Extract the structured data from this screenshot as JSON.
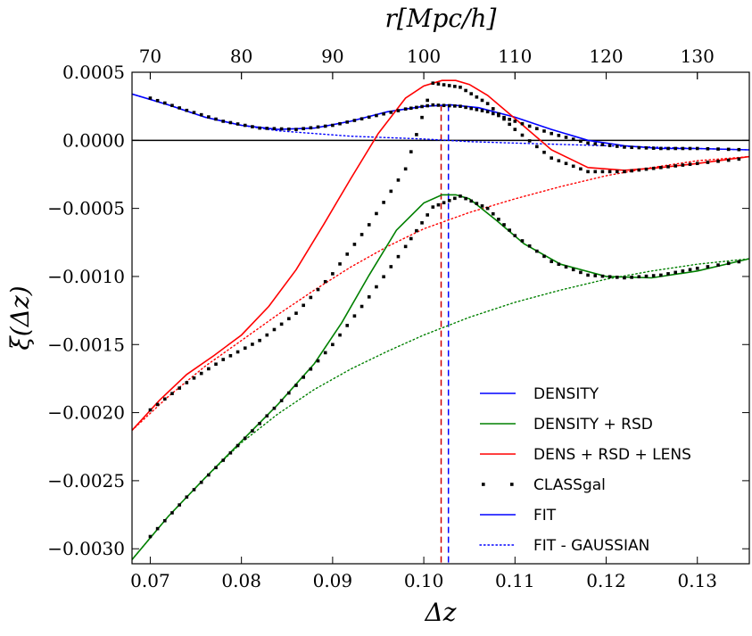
{
  "chart_data": {
    "type": "line",
    "xlabel": "Δz",
    "ylabel": "ξ(Δz)",
    "x2label": "r[Mpc/h]",
    "xlim": [
      0.068,
      0.1357
    ],
    "ylim": [
      -0.00311,
      0.0005
    ],
    "x_ticks": [
      0.07,
      0.08,
      0.09,
      0.1,
      0.11,
      0.12,
      0.13
    ],
    "x_tick_labels": [
      "0.07",
      "0.08",
      "0.09",
      "0.10",
      "0.11",
      "0.12",
      "0.13"
    ],
    "y_ticks": [
      0.0005,
      0.0,
      -0.0005,
      -0.001,
      -0.0015,
      -0.002,
      -0.0025,
      -0.003
    ],
    "y_tick_labels": [
      "0.0005",
      "0.0000",
      "−0.0005",
      "−0.0010",
      "−0.0015",
      "−0.0020",
      "−0.0025",
      "−0.0030"
    ],
    "x2_ticks_r": [
      70,
      80,
      90,
      100,
      110,
      120,
      130
    ],
    "x2_tick_labels": [
      "70",
      "80",
      "90",
      "100",
      "110",
      "120",
      "130"
    ],
    "r_per_dz": 1000,
    "vlines": [
      {
        "x": 0.1019,
        "color": "#cc0000",
        "style": "dashed"
      },
      {
        "x": 0.1027,
        "color": "#0000ff",
        "style": "dashed"
      }
    ],
    "hline": {
      "y": 0.0,
      "color": "#000000"
    },
    "colors": {
      "density": "#0000ff",
      "rsd": "#008000",
      "lens": "#ff0000",
      "classgal": "#000000"
    },
    "series": [
      {
        "name": "DENSITY",
        "key": "density",
        "style": "solid",
        "color": "#0000ff",
        "x": [
          0.068,
          0.072,
          0.076,
          0.08,
          0.084,
          0.088,
          0.092,
          0.096,
          0.1,
          0.103,
          0.106,
          0.11,
          0.114,
          0.118,
          0.122,
          0.126,
          0.13,
          0.1357
        ],
        "y": [
          0.00034,
          0.00026,
          0.00017,
          0.00011,
          8e-05,
          9e-05,
          0.00014,
          0.00021,
          0.00025,
          0.00026,
          0.00024,
          0.00017,
          8e-05,
          0.0,
          -4e-05,
          -6e-05,
          -6e-05,
          -7e-05
        ]
      },
      {
        "name": "DENSITY + RSD",
        "key": "rsd",
        "style": "solid",
        "color": "#008000",
        "x": [
          0.068,
          0.072,
          0.076,
          0.08,
          0.084,
          0.088,
          0.091,
          0.094,
          0.097,
          0.1,
          0.102,
          0.1035,
          0.105,
          0.108,
          0.111,
          0.115,
          0.12,
          0.125,
          0.13,
          0.1357
        ],
        "y": [
          -0.00308,
          -0.00276,
          -0.00248,
          -0.00221,
          -0.00194,
          -0.00164,
          -0.00134,
          -0.00099,
          -0.00066,
          -0.00046,
          -0.0004,
          -0.0004,
          -0.00043,
          -0.00059,
          -0.00076,
          -0.00091,
          -0.001,
          -0.00101,
          -0.00096,
          -0.00087
        ]
      },
      {
        "name": "DENS + RSD + LENS",
        "key": "lens",
        "style": "solid",
        "color": "#ff0000",
        "x": [
          0.068,
          0.071,
          0.074,
          0.077,
          0.08,
          0.083,
          0.086,
          0.089,
          0.092,
          0.095,
          0.098,
          0.1,
          0.102,
          0.1035,
          0.105,
          0.107,
          0.11,
          0.114,
          0.118,
          0.122,
          0.126,
          0.13,
          0.1357
        ],
        "y": [
          -0.00213,
          -0.00191,
          -0.00172,
          -0.00158,
          -0.00143,
          -0.00122,
          -0.00095,
          -0.00062,
          -0.00028,
          5e-05,
          0.00031,
          0.0004,
          0.00044,
          0.00044,
          0.00041,
          0.00033,
          0.00016,
          -7e-05,
          -0.0002,
          -0.00022,
          -0.0002,
          -0.00017,
          -0.00012
        ]
      },
      {
        "name": "CLASSgal",
        "key": "classgal",
        "style": "dots",
        "color": "#000000",
        "x": [
          0.07,
          0.074,
          0.078,
          0.082,
          0.086,
          0.09,
          0.094,
          0.098,
          0.101,
          0.104,
          0.107,
          0.11,
          0.114,
          0.118,
          0.122,
          0.126,
          0.13,
          0.1357
        ],
        "y_density": [
          0.00031,
          0.00022,
          0.00014,
          9e-05,
          8e-05,
          0.00011,
          0.00017,
          0.00023,
          0.00026,
          0.00025,
          0.00021,
          0.00014,
          5e-05,
          -2e-05,
          -5e-05,
          -6e-05,
          -6e-05,
          -7e-05
        ],
        "y_rsd": [
          -0.00291,
          -0.00262,
          -0.00235,
          -0.00208,
          -0.0018,
          -0.0015,
          -0.00115,
          -0.00078,
          -0.00049,
          -0.00041,
          -0.0005,
          -0.0007,
          -0.00089,
          -0.00099,
          -0.00101,
          -0.00099,
          -0.00094,
          -0.00088
        ],
        "y_lens": [
          -0.00198,
          -0.00178,
          -0.00161,
          -0.00147,
          -0.00127,
          -0.00098,
          -0.00062,
          -0.00021,
          0.00042,
          0.00039,
          0.00027,
          8e-05,
          -0.00013,
          -0.00023,
          -0.00023,
          -0.0002,
          -0.00017,
          -0.00013
        ]
      },
      {
        "name": "FIT",
        "key": "fit",
        "style": "solid",
        "color": "#0000ff"
      },
      {
        "name": "FIT - GAUSSIAN",
        "key": "fit_gauss",
        "style": "dotted",
        "color": "#0000ff",
        "x": [
          0.068,
          0.072,
          0.076,
          0.08,
          0.084,
          0.088,
          0.092,
          0.096,
          0.1,
          0.105,
          0.11,
          0.115,
          0.12,
          0.125,
          0.13,
          0.1357
        ],
        "y_density": [
          0.00034,
          0.00026,
          0.00017,
          0.00011,
          7e-05,
          5e-05,
          3e-05,
          2e-05,
          1e-05,
          -1e-05,
          -2e-05,
          -3e-05,
          -4e-05,
          -5e-05,
          -6e-05,
          -7e-05
        ],
        "y_rsd": [
          -0.00308,
          -0.00276,
          -0.00248,
          -0.00222,
          -0.00201,
          -0.00183,
          -0.00168,
          -0.00155,
          -0.00143,
          -0.0013,
          -0.00119,
          -0.0011,
          -0.00102,
          -0.00096,
          -0.00091,
          -0.00087
        ],
        "y_lens": [
          -0.00213,
          -0.00188,
          -0.00166,
          -0.00147,
          -0.00128,
          -0.0011,
          -0.00093,
          -0.00078,
          -0.00065,
          -0.00053,
          -0.00043,
          -0.00034,
          -0.00026,
          -0.0002,
          -0.00015,
          -0.00012
        ]
      }
    ],
    "legend": {
      "position": "lower-right",
      "entries": [
        {
          "label": "DENSITY",
          "color": "#0000ff",
          "style": "solid"
        },
        {
          "label": "DENSITY + RSD",
          "color": "#008000",
          "style": "solid"
        },
        {
          "label": "DENS + RSD + LENS",
          "color": "#ff0000",
          "style": "solid"
        },
        {
          "label": "CLASSgal",
          "color": "#000000",
          "style": "dots"
        },
        {
          "label": "FIT",
          "color": "#0000ff",
          "style": "solid"
        },
        {
          "label": "FIT - GAUSSIAN",
          "color": "#0000ff",
          "style": "dotted"
        }
      ]
    }
  }
}
